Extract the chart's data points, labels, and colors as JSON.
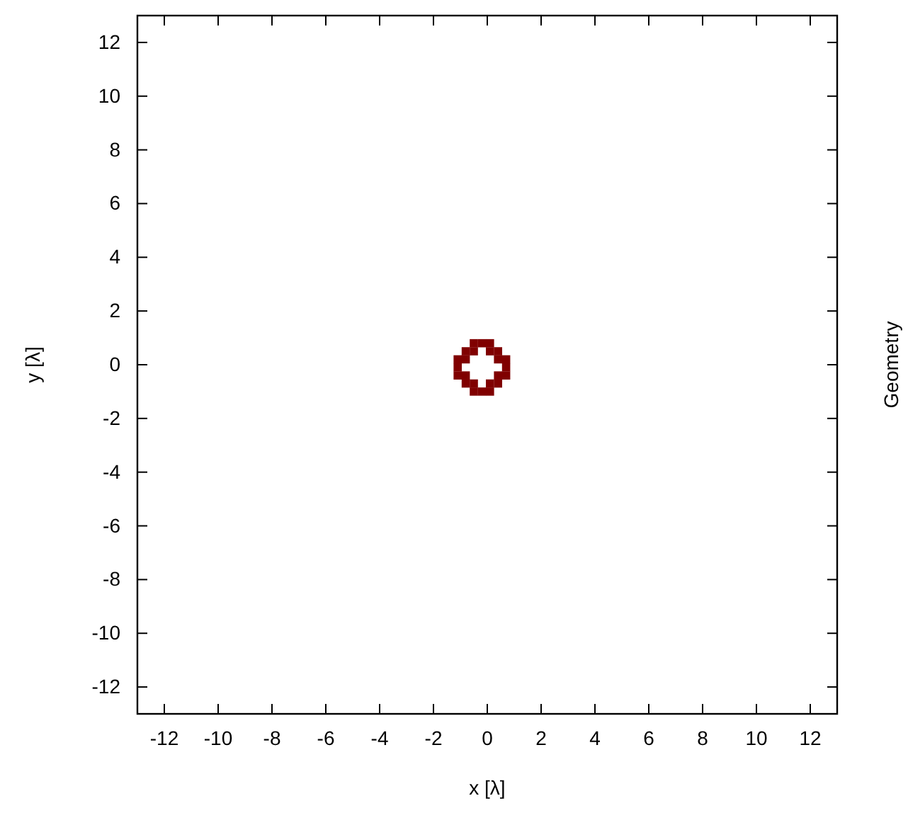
{
  "chart_data": {
    "type": "scatter",
    "xlabel": "x [λ]",
    "ylabel": "y [λ]",
    "annotations": [
      "Geometry"
    ],
    "xlim": [
      -13,
      13
    ],
    "ylim": [
      -13,
      13
    ],
    "xticks": [
      -12,
      -10,
      -8,
      -6,
      -4,
      -2,
      0,
      2,
      4,
      6,
      8,
      10,
      12
    ],
    "yticks": [
      -12,
      -10,
      -8,
      -6,
      -4,
      -2,
      0,
      2,
      4,
      6,
      8,
      10,
      12
    ],
    "marker": "square",
    "series": [
      {
        "color": "#800000",
        "x": [
          -0.5,
          -0.2,
          0.1,
          -0.8,
          -0.5,
          0.1,
          0.4,
          -1.1,
          -0.8,
          0.4,
          0.7,
          -1.1,
          0.7,
          -1.1,
          -0.8,
          0.4,
          0.7,
          -0.8,
          -0.5,
          0.1,
          0.4,
          -0.5,
          -0.2,
          0.1
        ],
        "values": [
          0.8,
          0.8,
          0.8,
          0.5,
          0.5,
          0.5,
          0.5,
          0.2,
          0.2,
          0.2,
          0.2,
          -0.1,
          -0.1,
          -0.4,
          -0.4,
          -0.4,
          -0.4,
          -0.7,
          -0.7,
          -0.7,
          -0.7,
          -1.0,
          -1.0,
          -1.0
        ]
      }
    ]
  }
}
